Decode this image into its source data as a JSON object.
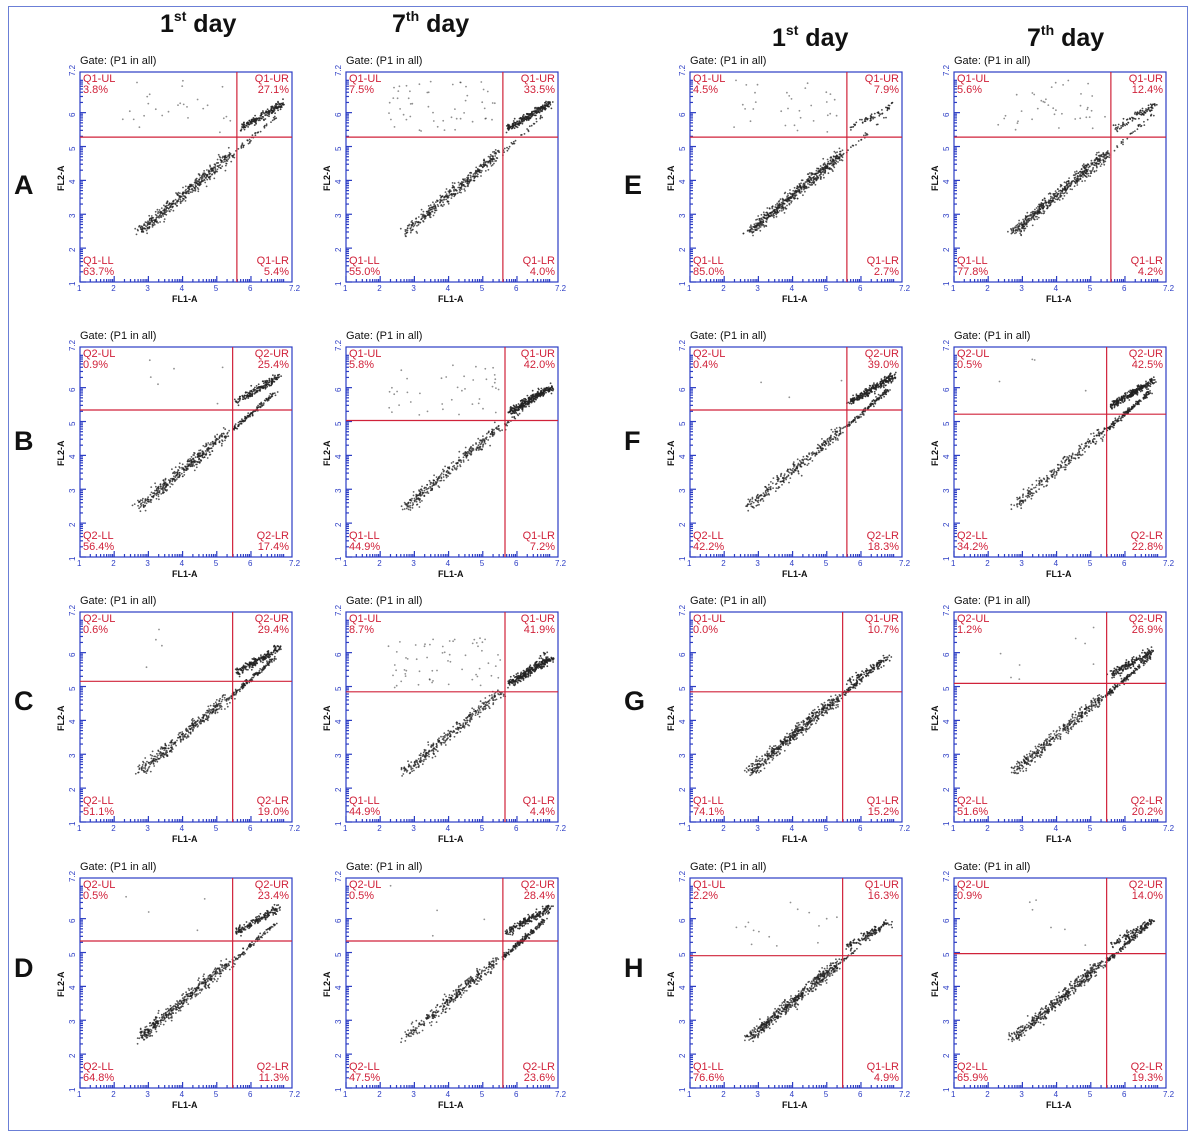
{
  "column_headers": [
    {
      "main": "1",
      "sup": "st",
      "rest": " day"
    },
    {
      "main": "7",
      "sup": "th",
      "rest": " day"
    },
    {
      "main": "1",
      "sup": "st",
      "rest": " day"
    },
    {
      "main": "7",
      "sup": "th",
      "rest": " day"
    }
  ],
  "row_labels": [
    "A",
    "B",
    "C",
    "D",
    "E",
    "F",
    "G",
    "H"
  ],
  "axes": {
    "xlabel": "FL1-A",
    "ylabel": "FL2-A",
    "x_ticks": [
      "1",
      "2",
      "3",
      "4",
      "5",
      "6",
      "7.2"
    ],
    "y_ticks": [
      "1",
      "2",
      "3",
      "4",
      "5",
      "6",
      "7.2"
    ]
  },
  "colors": {
    "axis": "#2b3cc4",
    "gate_line": "#d0223a",
    "label": "#d0223a",
    "dots": "#222222"
  },
  "chart_data": [
    {
      "type": "scatter",
      "row": "A",
      "day": "1st day",
      "gate": "Gate: (P1 in all)",
      "quadrants": {
        "UL": {
          "name": "Q1-UL",
          "pct": "3.8%"
        },
        "UR": {
          "name": "Q1-UR",
          "pct": "27.1%"
        },
        "LL": {
          "name": "Q1-LL",
          "pct": "63.7%"
        },
        "LR": {
          "name": "Q1-LR",
          "pct": "5.4%"
        }
      },
      "gate_x": 0.74,
      "gate_y": 0.69,
      "xlabel": "FL1-A",
      "ylabel": "FL2-A"
    },
    {
      "type": "scatter",
      "row": "A",
      "day": "7th day",
      "gate": "Gate: (P1 in all)",
      "quadrants": {
        "UL": {
          "name": "Q1-UL",
          "pct": "7.5%"
        },
        "UR": {
          "name": "Q1-UR",
          "pct": "33.5%"
        },
        "LL": {
          "name": "Q1-LL",
          "pct": "55.0%"
        },
        "LR": {
          "name": "Q1-LR",
          "pct": "4.0%"
        }
      },
      "gate_x": 0.74,
      "gate_y": 0.69,
      "xlabel": "FL1-A",
      "ylabel": "FL2-A"
    },
    {
      "type": "scatter",
      "row": "E",
      "day": "1st day",
      "gate": "Gate: (P1 in all)",
      "quadrants": {
        "UL": {
          "name": "Q1-UL",
          "pct": "4.5%"
        },
        "UR": {
          "name": "Q1-UR",
          "pct": "7.9%"
        },
        "LL": {
          "name": "Q1-LL",
          "pct": "85.0%"
        },
        "LR": {
          "name": "Q1-LR",
          "pct": "2.7%"
        }
      },
      "gate_x": 0.74,
      "gate_y": 0.69,
      "xlabel": "FL1-A",
      "ylabel": "FL2-A"
    },
    {
      "type": "scatter",
      "row": "E",
      "day": "7th day",
      "gate": "Gate: (P1 in all)",
      "quadrants": {
        "UL": {
          "name": "Q1-UL",
          "pct": "5.6%"
        },
        "UR": {
          "name": "Q1-UR",
          "pct": "12.4%"
        },
        "LL": {
          "name": "Q1-LL",
          "pct": "77.8%"
        },
        "LR": {
          "name": "Q1-LR",
          "pct": "4.2%"
        }
      },
      "gate_x": 0.74,
      "gate_y": 0.69,
      "xlabel": "FL1-A",
      "ylabel": "FL2-A"
    },
    {
      "type": "scatter",
      "row": "B",
      "day": "1st day",
      "gate": "Gate: (P1 in all)",
      "quadrants": {
        "UL": {
          "name": "Q2-UL",
          "pct": "0.9%"
        },
        "UR": {
          "name": "Q2-UR",
          "pct": "25.4%"
        },
        "LL": {
          "name": "Q2-LL",
          "pct": "56.4%"
        },
        "LR": {
          "name": "Q2-LR",
          "pct": "17.4%"
        }
      },
      "gate_x": 0.72,
      "gate_y": 0.7,
      "xlabel": "FL1-A",
      "ylabel": "FL2-A"
    },
    {
      "type": "scatter",
      "row": "B",
      "day": "7th day",
      "gate": "Gate: (P1 in all)",
      "quadrants": {
        "UL": {
          "name": "Q1-UL",
          "pct": "5.8%"
        },
        "UR": {
          "name": "Q1-UR",
          "pct": "42.0%"
        },
        "LL": {
          "name": "Q1-LL",
          "pct": "44.9%"
        },
        "LR": {
          "name": "Q1-LR",
          "pct": "7.2%"
        }
      },
      "gate_x": 0.75,
      "gate_y": 0.65,
      "xlabel": "FL1-A",
      "ylabel": "FL2-A"
    },
    {
      "type": "scatter",
      "row": "F",
      "day": "1st day",
      "gate": "Gate: (P1 in all)",
      "quadrants": {
        "UL": {
          "name": "Q2-UL",
          "pct": "0.4%"
        },
        "UR": {
          "name": "Q2-UR",
          "pct": "39.0%"
        },
        "LL": {
          "name": "Q2-LL",
          "pct": "42.2%"
        },
        "LR": {
          "name": "Q2-LR",
          "pct": "18.3%"
        }
      },
      "gate_x": 0.74,
      "gate_y": 0.7,
      "xlabel": "FL1-A",
      "ylabel": "FL2-A"
    },
    {
      "type": "scatter",
      "row": "F",
      "day": "7th day",
      "gate": "Gate: (P1 in all)",
      "quadrants": {
        "UL": {
          "name": "Q2-UL",
          "pct": "0.5%"
        },
        "UR": {
          "name": "Q2-UR",
          "pct": "42.5%"
        },
        "LL": {
          "name": "Q2-LL",
          "pct": "34.2%"
        },
        "LR": {
          "name": "Q2-LR",
          "pct": "22.8%"
        }
      },
      "gate_x": 0.72,
      "gate_y": 0.68,
      "xlabel": "FL1-A",
      "ylabel": "FL2-A"
    },
    {
      "type": "scatter",
      "row": "C",
      "day": "1st day",
      "gate": "Gate: (P1 in all)",
      "quadrants": {
        "UL": {
          "name": "Q2-UL",
          "pct": "0.6%"
        },
        "UR": {
          "name": "Q2-UR",
          "pct": "29.4%"
        },
        "LL": {
          "name": "Q2-LL",
          "pct": "51.1%"
        },
        "LR": {
          "name": "Q2-LR",
          "pct": "19.0%"
        }
      },
      "gate_x": 0.72,
      "gate_y": 0.67,
      "xlabel": "FL1-A",
      "ylabel": "FL2-A"
    },
    {
      "type": "scatter",
      "row": "C",
      "day": "7th day",
      "gate": "Gate: (P1 in all)",
      "quadrants": {
        "UL": {
          "name": "Q1-UL",
          "pct": "8.7%"
        },
        "UR": {
          "name": "Q1-UR",
          "pct": "41.9%"
        },
        "LL": {
          "name": "Q1-LL",
          "pct": "44.9%"
        },
        "LR": {
          "name": "Q1-LR",
          "pct": "4.4%"
        }
      },
      "gate_x": 0.75,
      "gate_y": 0.62,
      "xlabel": "FL1-A",
      "ylabel": "FL2-A"
    },
    {
      "type": "scatter",
      "row": "G",
      "day": "1st day",
      "gate": "Gate: (P1 in all)",
      "quadrants": {
        "UL": {
          "name": "Q1-UL",
          "pct": "0.0%"
        },
        "UR": {
          "name": "Q1-UR",
          "pct": "10.7%"
        },
        "LL": {
          "name": "Q1-LL",
          "pct": "74.1%"
        },
        "LR": {
          "name": "Q1-LR",
          "pct": "15.2%"
        }
      },
      "gate_x": 0.72,
      "gate_y": 0.62,
      "xlabel": "FL1-A",
      "ylabel": "FL2-A"
    },
    {
      "type": "scatter",
      "row": "G",
      "day": "7th day",
      "gate": "Gate: (P1 in all)",
      "quadrants": {
        "UL": {
          "name": "Q2-UL",
          "pct": "1.2%"
        },
        "UR": {
          "name": "Q2-UR",
          "pct": "26.9%"
        },
        "LL": {
          "name": "Q2-LL",
          "pct": "51.6%"
        },
        "LR": {
          "name": "Q2-LR",
          "pct": "20.2%"
        }
      },
      "gate_x": 0.72,
      "gate_y": 0.66,
      "xlabel": "FL1-A",
      "ylabel": "FL2-A"
    },
    {
      "type": "scatter",
      "row": "D",
      "day": "1st day",
      "gate": "Gate: (P1 in all)",
      "quadrants": {
        "UL": {
          "name": "Q2-UL",
          "pct": "0.5%"
        },
        "UR": {
          "name": "Q2-UR",
          "pct": "23.4%"
        },
        "LL": {
          "name": "Q2-LL",
          "pct": "64.8%"
        },
        "LR": {
          "name": "Q2-LR",
          "pct": "11.3%"
        }
      },
      "gate_x": 0.72,
      "gate_y": 0.7,
      "xlabel": "FL1-A",
      "ylabel": "FL2-A"
    },
    {
      "type": "scatter",
      "row": "D",
      "day": "7th day",
      "gate": "Gate: (P1 in all)",
      "quadrants": {
        "UL": {
          "name": "Q2-UL",
          "pct": "0.5%"
        },
        "UR": {
          "name": "Q2-UR",
          "pct": "28.4%"
        },
        "LL": {
          "name": "Q2-LL",
          "pct": "47.5%"
        },
        "LR": {
          "name": "Q2-LR",
          "pct": "23.6%"
        }
      },
      "gate_x": 0.74,
      "gate_y": 0.7,
      "xlabel": "FL1-A",
      "ylabel": "FL2-A"
    },
    {
      "type": "scatter",
      "row": "H",
      "day": "1st day",
      "gate": "Gate: (P1 in all)",
      "quadrants": {
        "UL": {
          "name": "Q1-UL",
          "pct": "2.2%"
        },
        "UR": {
          "name": "Q1-UR",
          "pct": "16.3%"
        },
        "LL": {
          "name": "Q1-LL",
          "pct": "76.6%"
        },
        "LR": {
          "name": "Q1-LR",
          "pct": "4.9%"
        }
      },
      "gate_x": 0.72,
      "gate_y": 0.63,
      "xlabel": "FL1-A",
      "ylabel": "FL2-A"
    },
    {
      "type": "scatter",
      "row": "H",
      "day": "7th day",
      "gate": "Gate: (P1 in all)",
      "quadrants": {
        "UL": {
          "name": "Q2-UL",
          "pct": "0.9%"
        },
        "UR": {
          "name": "Q2-UR",
          "pct": "14.0%"
        },
        "LL": {
          "name": "Q2-LL",
          "pct": "65.9%"
        },
        "LR": {
          "name": "Q2-LR",
          "pct": "19.3%"
        }
      },
      "gate_x": 0.72,
      "gate_y": 0.64,
      "xlabel": "FL1-A",
      "ylabel": "FL2-A"
    }
  ]
}
